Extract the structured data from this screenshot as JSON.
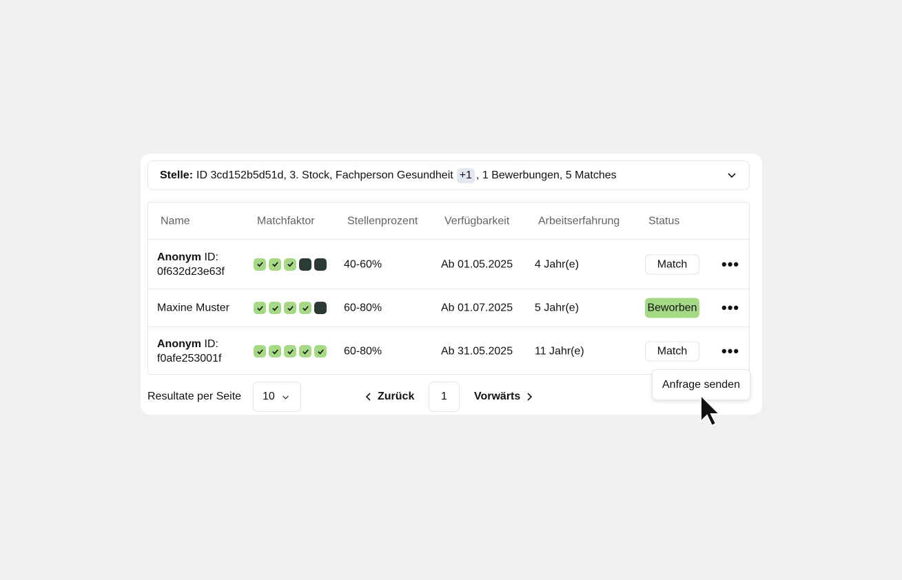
{
  "stelle": {
    "label": "Stelle:",
    "text": "ID 3cd152b5d51d, 3. Stock, Fachperson Gesundheit",
    "badge": "+1",
    "suffix": ", 1 Bewerbungen, 5 Matches"
  },
  "columns": [
    "Name",
    "Matchfaktor",
    "Stellenprozent",
    "Verfügbarkeit",
    "Arbeitserfahrung",
    "Status"
  ],
  "rows": [
    {
      "name_bold": "Anonym",
      "name_rest": " ID:",
      "name_line2": "0f632d23e63f",
      "match": [
        true,
        true,
        true,
        false,
        false
      ],
      "percent": "40-60%",
      "available": "Ab 01.05.2025",
      "experience": "4 Jahr(e)",
      "status": "Match"
    },
    {
      "name_bold": "",
      "name_rest": "Maxine Muster",
      "name_line2": "",
      "match": [
        true,
        true,
        true,
        true,
        false
      ],
      "percent": "60-80%",
      "available": "Ab 01.07.2025",
      "experience": "5 Jahr(e)",
      "status": "Beworben"
    },
    {
      "name_bold": "Anonym",
      "name_rest": " ID:",
      "name_line2": "f0afe253001f",
      "match": [
        true,
        true,
        true,
        true,
        true
      ],
      "percent": "60-80%",
      "available": "Ab 31.05.2025",
      "experience": "11 Jahr(e)",
      "status": "Match"
    }
  ],
  "footer": {
    "per_page_label": "Resultate per Seite",
    "per_page": "10",
    "prev": "Zurück",
    "page": "1",
    "next": "Vorwärts"
  },
  "menu": {
    "item": "Anfrage senden"
  },
  "colors": {
    "match_on": "#a6d985",
    "match_off": "#2c3a36",
    "applied": "#a6d985"
  }
}
